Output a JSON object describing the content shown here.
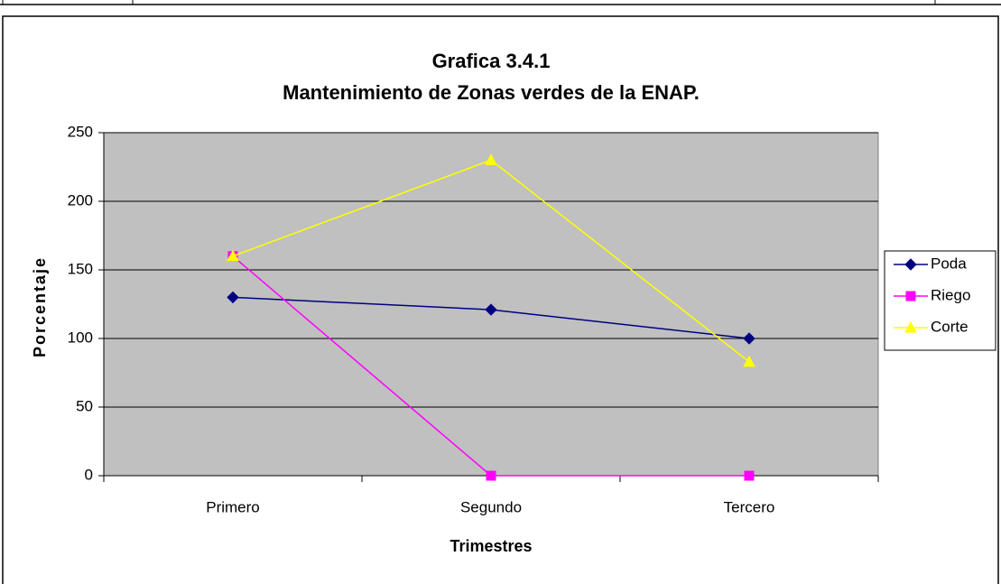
{
  "chart_data": {
    "type": "line",
    "title": "Grafica 3.4.1",
    "subtitle": "Mantenimiento de Zonas verdes de la ENAP.",
    "x_label": "Trimestres",
    "y_label": "Porcentaje",
    "categories": [
      "Primero",
      "Segundo",
      "Tercero"
    ],
    "series": [
      {
        "name": "Poda",
        "color": "#000080",
        "marker": "diamond",
        "values": [
          130,
          121,
          100
        ]
      },
      {
        "name": "Riego",
        "color": "#ff00ff",
        "marker": "square",
        "values": [
          160,
          0,
          0
        ]
      },
      {
        "name": "Corte",
        "color": "#ffff00",
        "marker": "triangle",
        "values": [
          160,
          230,
          83
        ]
      }
    ],
    "ylim": [
      0,
      250
    ],
    "yticks": [
      0,
      50,
      100,
      150,
      200,
      250
    ],
    "grid": true,
    "legend": "right"
  }
}
